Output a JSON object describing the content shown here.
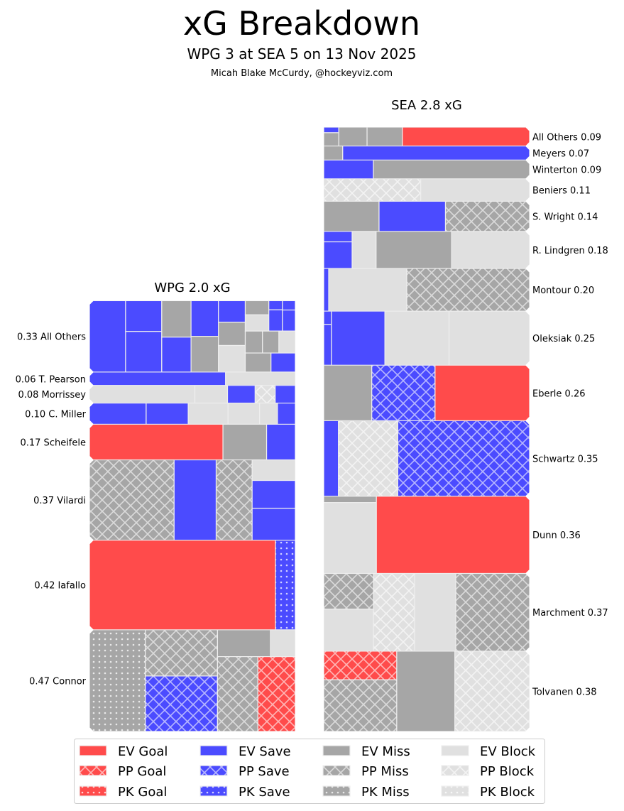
{
  "colors": {
    "Goal": "#ff4b4b",
    "Save": "#4b4bff",
    "Miss": "#a6a6a6",
    "Block": "#e0e0e0"
  },
  "chart_data": {
    "type": "treemap",
    "title": "xG Breakdown",
    "subtitle": "WPG 3 at SEA 5 on 13 Nov 2025",
    "credit": "Micah Blake McCurdy, @hockeyviz.com",
    "legend": {
      "placement": "bottom",
      "entries": [
        "EV Goal",
        "EV Save",
        "EV Miss",
        "EV Block",
        "PP Goal",
        "PP Save",
        "PP Miss",
        "PP Block",
        "PK Goal",
        "PK Save",
        "PK Miss",
        "PK Block"
      ]
    },
    "teams": [
      {
        "title": "WPG 2.0 xG",
        "side": "left",
        "rows": [
          {
            "label": "0.33 All Others",
            "xg": 0.33,
            "shots": [
              [
                "EV Save",
                0.058
              ],
              {
                "v": [
                  [
                    "EV Save",
                    0.025
                  ],
                  [
                    "EV Save",
                    0.033
                  ]
                ]
              },
              {
                "v": [
                  [
                    "EV Miss",
                    0.024
                  ],
                  [
                    "EV Save",
                    0.023
                  ]
                ]
              },
              {
                "v": [
                  [
                    "EV Save",
                    0.022
                  ],
                  [
                    "EV Miss",
                    0.022
                  ]
                ]
              },
              {
                "v": [
                  [
                    "EV Save",
                    0.013
                  ],
                  [
                    "EV Miss",
                    0.014
                  ],
                  [
                    "EV Block",
                    0.016
                  ]
                ]
              },
              {
                "v": [
                  {
                    "h": [
                      {
                        "v": [
                          [
                            "EV Miss",
                            0.0075
                          ],
                          [
                            "EV Block",
                            0.0086
                          ]
                        ]
                      },
                      {
                        "v": [
                          [
                            "EV Save",
                            0.0028
                          ],
                          [
                            "EV Save",
                            0.0065
                          ]
                        ]
                      },
                      {
                        "v": [
                          [
                            "EV Save",
                            0.0027
                          ],
                          [
                            "EV Save",
                            0.0061
                          ]
                        ]
                      }
                    ]
                  },
                  {
                    "h": [
                      [
                        "EV Miss",
                        0.0085
                      ],
                      [
                        "EV Miss",
                        0.0081
                      ],
                      [
                        "EV Block",
                        0.0081
                      ]
                    ]
                  },
                  {
                    "h": [
                      [
                        "EV Miss",
                        0.011
                      ],
                      [
                        "EV Save",
                        0.0104
                      ]
                    ]
                  }
                ]
              }
            ]
          },
          {
            "label": "0.06 T. Pearson",
            "xg": 0.06,
            "shots": [
              [
                "EV Save",
                0.041
              ],
              [
                "EV Block",
                0.021
              ]
            ]
          },
          {
            "label": "0.08 Morrissey",
            "xg": 0.08,
            "shots": [
              [
                "EV Block",
                0.042
              ],
              [
                "EV Block",
                0.013
              ],
              [
                "EV Save",
                0.011
              ],
              [
                "PP Block",
                0.008
              ],
              [
                "EV Save",
                0.008
              ]
            ]
          },
          {
            "label": "0.10 C. Miller",
            "xg": 0.1,
            "shots": [
              [
                "EV Save",
                0.027
              ],
              [
                "EV Save",
                0.02
              ],
              [
                "EV Block",
                0.019
              ],
              [
                "EV Block",
                0.015
              ],
              [
                "EV Block",
                0.0085
              ],
              [
                "EV Save",
                0.0085
              ]
            ]
          },
          {
            "label": "0.17 Scheifele",
            "xg": 0.17,
            "shots": [
              [
                "EV Goal",
                0.107
              ],
              [
                "EV Miss",
                0.035
              ],
              [
                "EV Save",
                0.023
              ]
            ]
          },
          {
            "label": "0.37 Vilardi",
            "xg": 0.37,
            "shots": [
              [
                "PP Miss",
                0.153
              ],
              [
                "EV Save",
                0.076
              ],
              [
                "PP Miss",
                0.065
              ],
              {
                "v": [
                  [
                    "EV Block",
                    0.02
                  ],
                  [
                    "EV Save",
                    0.027
                  ],
                  [
                    "EV Save",
                    0.031
                  ]
                ]
              }
            ]
          },
          {
            "label": "0.42 Iafallo",
            "xg": 0.42,
            "shots": [
              [
                "EV Goal",
                0.375
              ],
              [
                "PK Save",
                0.04
              ]
            ]
          },
          {
            "label": "0.47 Connor",
            "xg": 0.47,
            "shots": [
              [
                "PK Miss",
                0.128
              ],
              {
                "v": [
                  [
                    "PP Miss",
                    0.075
                  ],
                  [
                    "PP Save",
                    0.09
                  ]
                ]
              },
              {
                "v": [
                  {
                    "h": [
                      [
                        "EV Miss",
                        0.032
                      ],
                      [
                        "EV Block",
                        0.015
                      ]
                    ]
                  },
                  {
                    "h": [
                      [
                        "PP Miss",
                        0.068
                      ],
                      [
                        "PP Goal",
                        0.063
                      ]
                    ]
                  }
                ]
              }
            ]
          }
        ]
      },
      {
        "title": "SEA 2.8 xG",
        "side": "right",
        "rows": [
          {
            "label": "All Others 0.09",
            "xg": 0.09,
            "shots": [
              {
                "v": [
                  [
                    "EV Save",
                    0.0019
                  ],
                  [
                    "EV Miss",
                    0.0045
                  ]
                ]
              },
              [
                "EV Miss",
                0.012
              ],
              [
                "EV Miss",
                0.015
              ],
              [
                "EV Goal",
                0.054
              ]
            ]
          },
          {
            "label": "Meyers 0.07",
            "xg": 0.07,
            "shots": [
              [
                "EV Miss",
                0.006
              ],
              [
                "EV Save",
                0.059
              ]
            ]
          },
          {
            "label": "Winterton 0.09",
            "xg": 0.09,
            "shots": [
              [
                "EV Save",
                0.021
              ],
              [
                "EV Miss",
                0.066
              ]
            ]
          },
          {
            "label": "Beniers 0.11",
            "xg": 0.11,
            "shots": [
              [
                "PP Block",
                0.049
              ],
              [
                "EV Block",
                0.055
              ]
            ]
          },
          {
            "label": "S. Wright 0.14",
            "xg": 0.14,
            "shots": [
              [
                "EV Miss",
                0.0375
              ],
              [
                "EV Save",
                0.045
              ],
              [
                "PP Miss",
                0.057
              ]
            ]
          },
          {
            "label": "R. Lindgren 0.18",
            "xg": 0.18,
            "shots": [
              {
                "v": [
                  [
                    "EV Save",
                    0.0067
                  ],
                  [
                    "EV Save",
                    0.017
                  ]
                ]
              },
              [
                "EV Block",
                0.02
              ],
              [
                "EV Miss",
                0.063
              ],
              [
                "EV Block",
                0.065
              ]
            ]
          },
          {
            "label": "Montour 0.20",
            "xg": 0.2,
            "shots": [
              [
                "EV Save",
                0.0048
              ],
              [
                "EV Block",
                0.075
              ],
              [
                "PP Miss",
                0.118
              ]
            ]
          },
          {
            "label": "Oleksiak 0.25",
            "xg": 0.25,
            "shots": [
              {
                "v": [
                  [
                    "EV Save",
                    0.0023
                  ],
                  [
                    "EV Save",
                    0.0071
                  ]
                ]
              },
              [
                "EV Save",
                0.065
              ],
              [
                "EV Block",
                0.078
              ],
              [
                "EV Block",
                0.098
              ]
            ]
          },
          {
            "label": "Eberle 0.26",
            "xg": 0.26,
            "shots": [
              [
                "EV Miss",
                0.06
              ],
              [
                "PP Save",
                0.079
              ],
              [
                "EV Goal",
                0.118
              ]
            ]
          },
          {
            "label": "Schwartz 0.35",
            "xg": 0.35,
            "shots": [
              [
                "EV Save",
                0.025
              ],
              [
                "PP Block",
                0.101
              ],
              [
                "PP Save",
                0.224
              ]
            ]
          },
          {
            "label": "Dunn 0.36",
            "xg": 0.36,
            "shots": [
              {
                "v": [
                  [
                    "EV Miss",
                    0.0075
                  ],
                  [
                    "EV Block",
                    0.084
                  ]
                ]
              },
              [
                "EV Goal",
                0.266
              ]
            ]
          },
          {
            "label": "Marchment 0.37",
            "xg": 0.37,
            "shots": [
              {
                "v": [
                  [
                    "PP Miss",
                    0.04
                  ],
                  [
                    "EV Block",
                    0.047
                  ]
                ]
              },
              [
                "PP Block",
                0.072
              ],
              [
                "EV Block",
                0.072
              ],
              [
                "PP Miss",
                0.129
              ]
            ]
          },
          {
            "label": "Tolvanen 0.38",
            "xg": 0.38,
            "shots": [
              {
                "v": [
                  [
                    "PP Goal",
                    0.047
                  ],
                  [
                    "PP Miss",
                    0.085
                  ]
                ]
              },
              [
                "EV Miss",
                0.105
              ],
              [
                "PP Block",
                0.135
              ]
            ]
          }
        ]
      }
    ]
  }
}
